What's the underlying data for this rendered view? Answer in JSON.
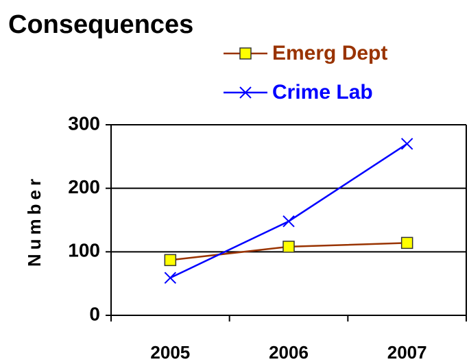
{
  "chart_data": {
    "type": "line",
    "title": "Consequences",
    "y_label": "Number",
    "categories": [
      "2005",
      "2006",
      "2007"
    ],
    "series": [
      {
        "name": "Emerg Dept",
        "color": "#993300",
        "marker_color": "#ffff00",
        "marker": "square",
        "values": [
          87,
          108,
          114
        ]
      },
      {
        "name": "Crime Lab",
        "color": "#0000ff",
        "marker": "x",
        "values": [
          59,
          148,
          270
        ]
      }
    ],
    "ylim": [
      0,
      300
    ],
    "yticks": [
      0,
      100,
      200,
      300
    ],
    "grid": true
  }
}
